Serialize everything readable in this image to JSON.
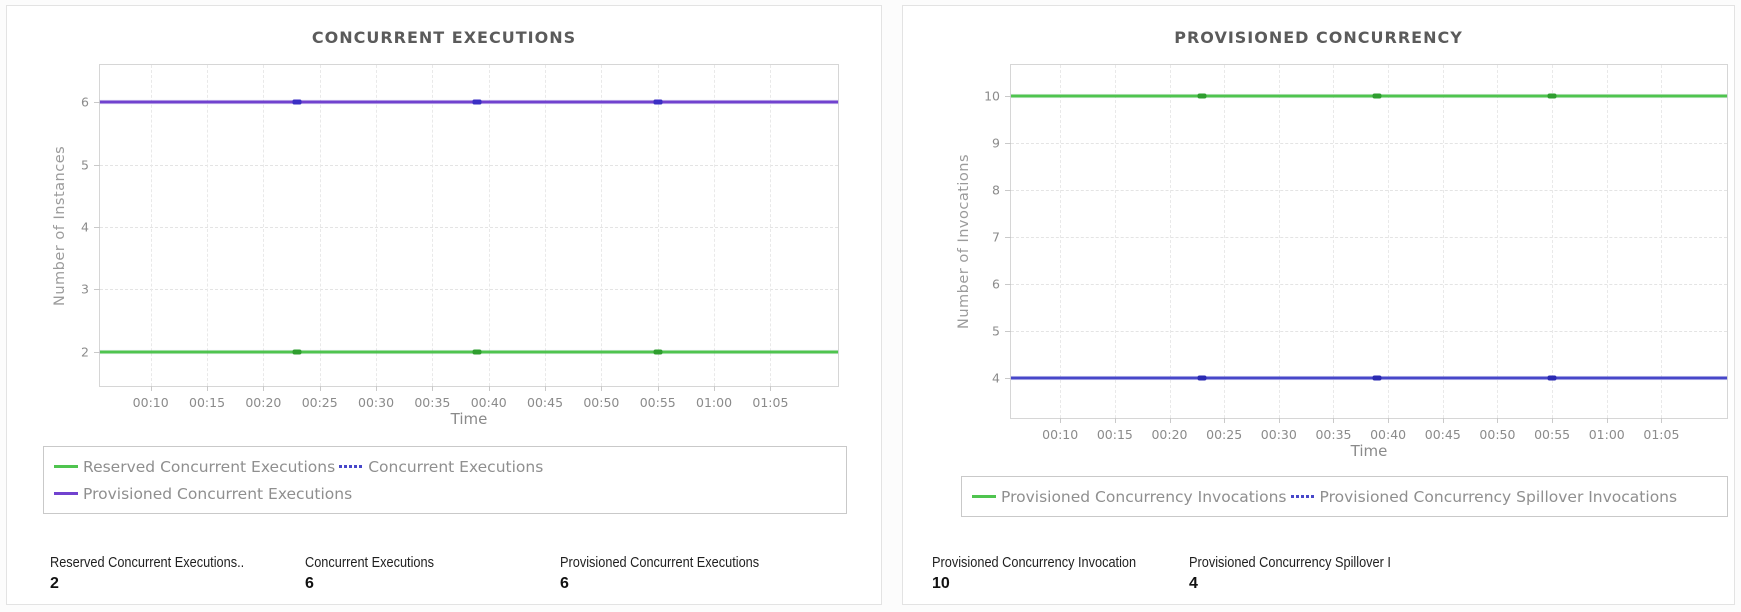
{
  "page": {
    "background": "#fcfcfc"
  },
  "panels": [
    {
      "name": "concurrent-executions",
      "title": "CONCURRENT EXECUTIONS",
      "chart_data": {
        "type": "line",
        "title": "CONCURRENT EXECUTIONS",
        "xlabel": "Time",
        "ylabel": "Number of Instances",
        "x_ticks": [
          "00:10",
          "00:15",
          "00:20",
          "00:25",
          "00:30",
          "00:35",
          "00:40",
          "00:45",
          "00:50",
          "00:55",
          "01:00",
          "01:05"
        ],
        "x_tick_minutes": [
          10,
          15,
          20,
          25,
          30,
          35,
          40,
          45,
          50,
          55,
          60,
          65
        ],
        "xlim_minutes": [
          5.5,
          71
        ],
        "y_ticks": [
          2,
          3,
          4,
          5,
          6
        ],
        "ylim": [
          1.45,
          6.6
        ],
        "grid": true,
        "legend_position": "bottom",
        "legend_wrap_after": 2,
        "marker_minutes": [
          23,
          39,
          55
        ],
        "series": [
          {
            "name": "Reserved Concurrent Executions",
            "value": 2,
            "color": "#4fc44f",
            "marker_color": "#2f9e2f",
            "legend_dashed": false
          },
          {
            "name": "Concurrent Executions",
            "value": 6,
            "color": "#4747c9",
            "marker_color": "#2a2ab2",
            "legend_dashed": true
          },
          {
            "name": "Provisioned Concurrent Executions",
            "value": 6,
            "color": "#7142cf",
            "marker_color": "#3b2fc4",
            "legend_dashed": false
          }
        ]
      },
      "stats": [
        {
          "label": "Reserved Concurrent Executions..",
          "value": "2"
        },
        {
          "label": "Concurrent Executions",
          "value": "6"
        },
        {
          "label": "Provisioned Concurrent Executions",
          "value": "6"
        }
      ]
    },
    {
      "name": "provisioned-concurrency",
      "title": "PROVISIONED CONCURRENCY",
      "chart_data": {
        "type": "line",
        "title": "PROVISIONED CONCURRENCY",
        "xlabel": "Time",
        "ylabel": "Number of Invocations",
        "x_ticks": [
          "00:10",
          "00:15",
          "00:20",
          "00:25",
          "00:30",
          "00:35",
          "00:40",
          "00:45",
          "00:50",
          "00:55",
          "01:00",
          "01:05"
        ],
        "x_tick_minutes": [
          10,
          15,
          20,
          25,
          30,
          35,
          40,
          45,
          50,
          55,
          60,
          65
        ],
        "xlim_minutes": [
          5.5,
          71
        ],
        "y_ticks": [
          4,
          5,
          6,
          7,
          8,
          9,
          10
        ],
        "ylim": [
          3.15,
          10.65
        ],
        "grid": true,
        "legend_position": "bottom",
        "legend_wrap_after": null,
        "marker_minutes": [
          23,
          39,
          55
        ],
        "series": [
          {
            "name": "Provisioned Concurrency Invocations",
            "value": 10,
            "color": "#4fc44f",
            "marker_color": "#2f9e2f",
            "legend_dashed": false
          },
          {
            "name": "Provisioned Concurrency Spillover Invocations",
            "value": 4,
            "color": "#4747c9",
            "marker_color": "#2a2ab2",
            "legend_dashed": true
          }
        ]
      },
      "stats": [
        {
          "label": "Provisioned Concurrency Invocation",
          "value": "10"
        },
        {
          "label": "Provisioned Concurrency Spillover I",
          "value": "4"
        }
      ]
    }
  ]
}
